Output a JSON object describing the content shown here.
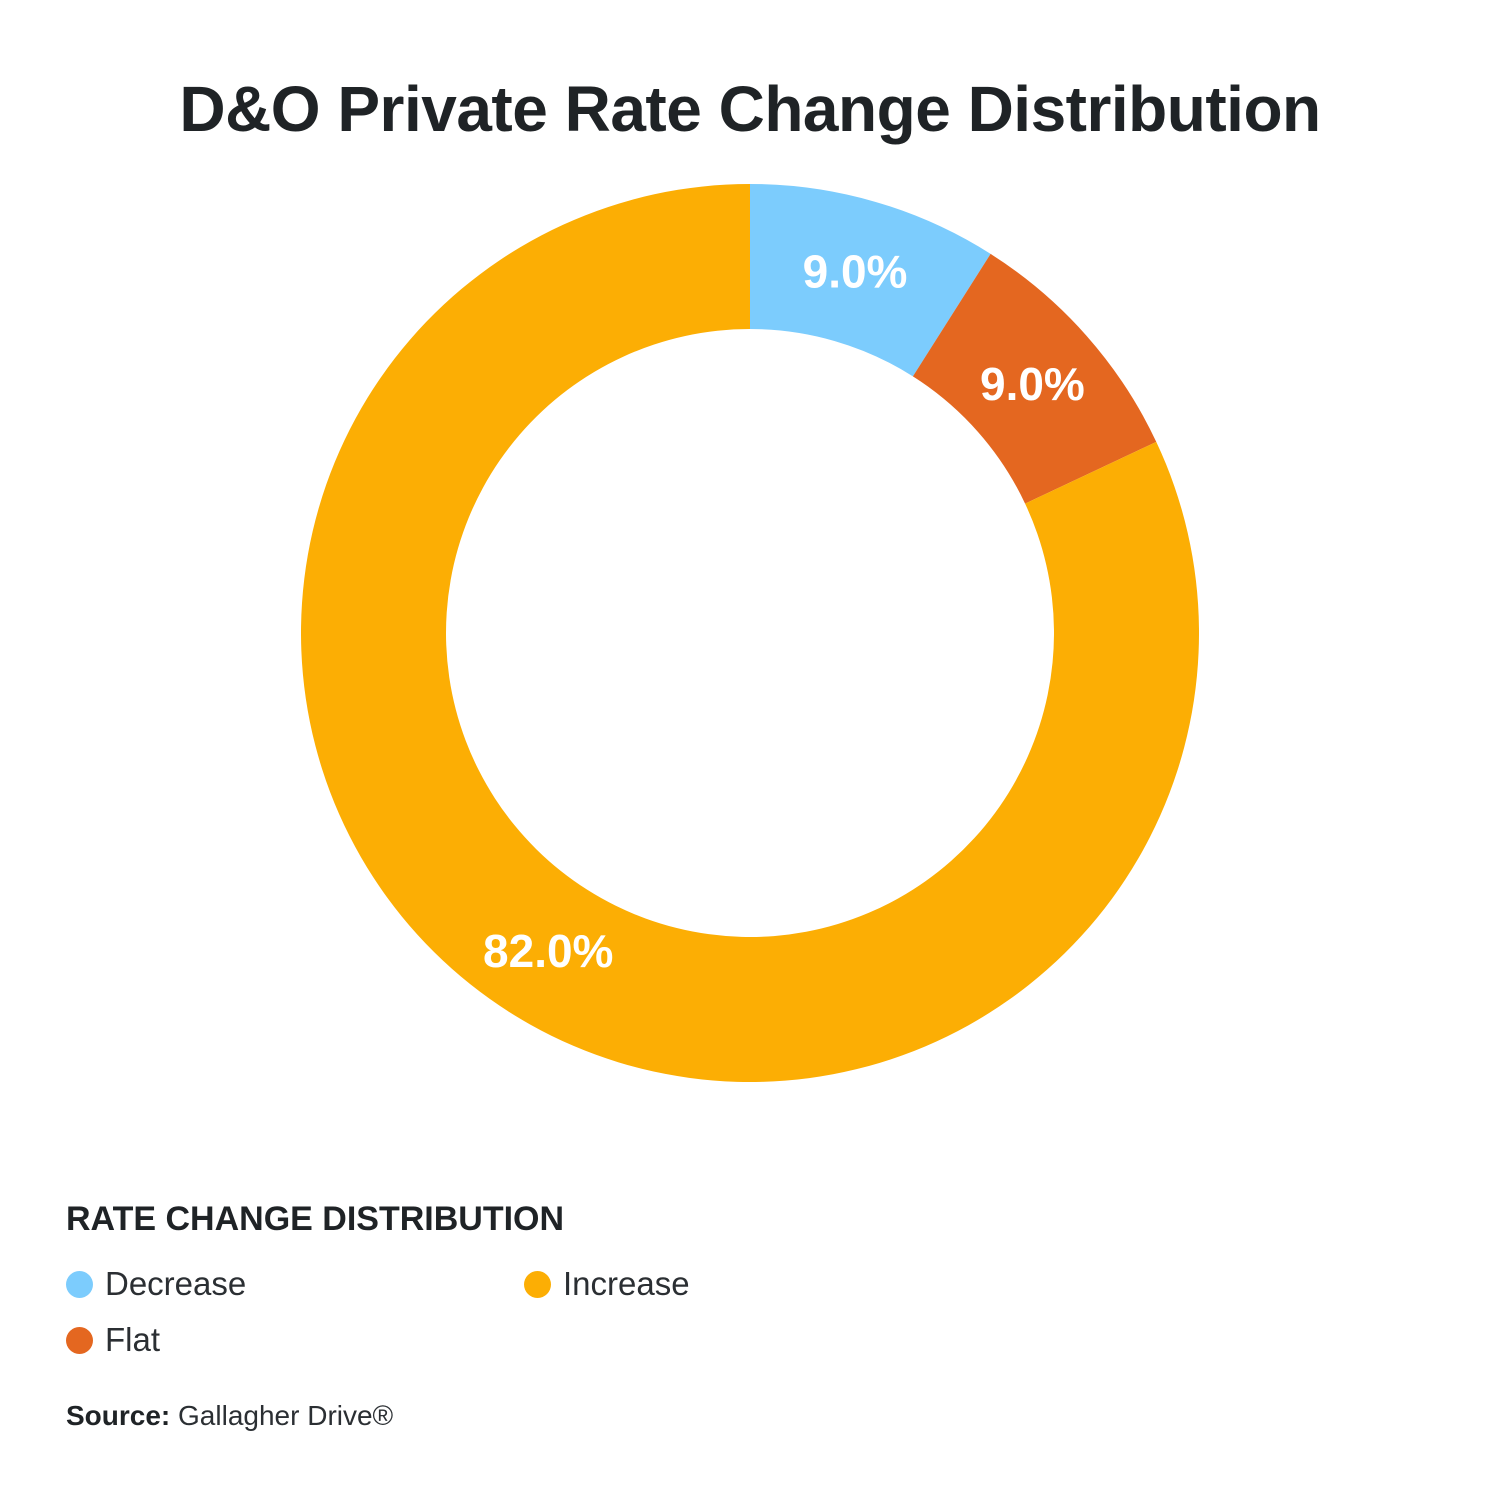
{
  "chart_data": {
    "type": "pie",
    "title": "D&O Private Rate Change Distribution",
    "legend_title": "RATE CHANGE DISTRIBUTION",
    "legend_position": "bottom-left",
    "slices": [
      {
        "name": "Decrease",
        "value": 9.0,
        "label": "9.0%",
        "color": "#7cccfd"
      },
      {
        "name": "Flat",
        "value": 9.0,
        "label": "9.0%",
        "color": "#e46720"
      },
      {
        "name": "Increase",
        "value": 82.0,
        "label": "82.0%",
        "color": "#fcae04"
      }
    ],
    "legend_order": [
      "Decrease",
      "Increase",
      "Flat"
    ]
  },
  "source": {
    "label": "Source:",
    "text": "Gallagher Drive®"
  }
}
